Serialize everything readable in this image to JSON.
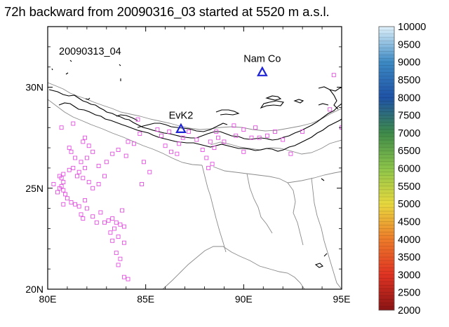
{
  "title": "72h backward from 20090316_03 started at 5520 m a.s.l.",
  "map": {
    "date_label": "20090313_04",
    "lon_range": [
      80,
      95
    ],
    "lat_range": [
      20,
      33
    ],
    "lon_ticks": [
      {
        "value": 80,
        "label": "80E"
      },
      {
        "value": 85,
        "label": "85E"
      },
      {
        "value": 90,
        "label": "90E"
      },
      {
        "value": 95,
        "label": "95E"
      }
    ],
    "lat_ticks": [
      {
        "value": 20,
        "label": "20N"
      },
      {
        "value": 25,
        "label": "25N"
      },
      {
        "value": 30,
        "label": "30N"
      }
    ],
    "sites": [
      {
        "name": "Nam Co",
        "lon": 90.95,
        "lat": 30.77,
        "marker": "triangle",
        "color": "#1f24d6"
      },
      {
        "name": "EvK2",
        "lon": 86.8,
        "lat": 27.96,
        "marker": "triangle",
        "color": "#1f24d6"
      }
    ],
    "particle_color": "#e34fe0",
    "particles": [
      [
        80.7,
        28.0
      ],
      [
        81.1,
        27.0
      ],
      [
        81.2,
        26.8
      ],
      [
        81.4,
        26.5
      ],
      [
        81.3,
        26.0
      ],
      [
        81.1,
        25.9
      ],
      [
        80.8,
        25.7
      ],
      [
        80.6,
        25.6
      ],
      [
        80.7,
        25.5
      ],
      [
        80.8,
        25.3
      ],
      [
        80.7,
        25.1
      ],
      [
        80.6,
        25.0
      ],
      [
        80.8,
        24.9
      ],
      [
        80.9,
        24.7
      ],
      [
        81.0,
        24.5
      ],
      [
        81.2,
        24.3
      ],
      [
        81.4,
        24.2
      ],
      [
        81.6,
        24.1
      ],
      [
        81.9,
        24.4
      ],
      [
        82.0,
        24.0
      ],
      [
        81.7,
        23.7
      ],
      [
        81.8,
        23.5
      ],
      [
        82.3,
        23.6
      ],
      [
        82.5,
        23.3
      ],
      [
        82.9,
        23.3
      ],
      [
        83.1,
        23.4
      ],
      [
        83.3,
        23.5
      ],
      [
        83.5,
        23.3
      ],
      [
        83.7,
        23.2
      ],
      [
        83.8,
        23.9
      ],
      [
        83.9,
        23.1
      ],
      [
        83.4,
        23.0
      ],
      [
        83.2,
        22.8
      ],
      [
        83.6,
        22.6
      ],
      [
        83.3,
        22.4
      ],
      [
        83.9,
        22.3
      ],
      [
        83.5,
        21.8
      ],
      [
        83.7,
        21.5
      ],
      [
        83.6,
        21.2
      ],
      [
        83.9,
        20.6
      ],
      [
        84.1,
        20.5
      ],
      [
        81.9,
        27.5
      ],
      [
        81.8,
        27.3
      ],
      [
        82.1,
        27.1
      ],
      [
        82.3,
        26.8
      ],
      [
        82.0,
        26.5
      ],
      [
        81.7,
        26.3
      ],
      [
        81.9,
        26.0
      ],
      [
        81.6,
        25.8
      ],
      [
        81.5,
        25.6
      ],
      [
        81.8,
        25.5
      ],
      [
        82.1,
        25.3
      ],
      [
        82.3,
        25.0
      ],
      [
        82.6,
        25.2
      ],
      [
        82.9,
        25.6
      ],
      [
        82.6,
        26.1
      ],
      [
        83.0,
        26.3
      ],
      [
        83.3,
        26.7
      ],
      [
        83.6,
        26.9
      ],
      [
        84.1,
        27.3
      ],
      [
        84.0,
        26.6
      ],
      [
        84.4,
        27.2
      ],
      [
        84.6,
        28.4
      ],
      [
        84.7,
        27.7
      ],
      [
        84.9,
        26.3
      ],
      [
        85.2,
        25.8
      ],
      [
        84.8,
        25.2
      ],
      [
        85.6,
        27.9
      ],
      [
        85.8,
        27.6
      ],
      [
        86.2,
        27.8
      ],
      [
        86.0,
        27.1
      ],
      [
        86.3,
        26.8
      ],
      [
        86.6,
        26.7
      ],
      [
        86.7,
        27.2
      ],
      [
        86.9,
        27.5
      ],
      [
        87.2,
        27.8
      ],
      [
        87.6,
        27.4
      ],
      [
        87.9,
        26.9
      ],
      [
        88.1,
        26.5
      ],
      [
        88.4,
        26.2
      ],
      [
        88.2,
        26.0
      ],
      [
        88.5,
        27.0
      ],
      [
        88.7,
        27.5
      ],
      [
        88.6,
        27.8
      ],
      [
        89.0,
        27.3
      ],
      [
        89.6,
        27.6
      ],
      [
        90.0,
        27.9
      ],
      [
        90.0,
        26.8
      ],
      [
        90.4,
        27.5
      ],
      [
        90.8,
        27.5
      ],
      [
        91.2,
        27.6
      ],
      [
        91.6,
        27.8
      ],
      [
        92.0,
        27.4
      ],
      [
        92.4,
        26.7
      ],
      [
        89.5,
        28.1
      ],
      [
        90.6,
        28.0
      ],
      [
        93.0,
        27.8
      ],
      [
        94.4,
        28.9
      ],
      [
        94.6,
        30.6
      ],
      [
        95.0,
        28.0
      ],
      [
        88.3,
        27.3
      ],
      [
        80.3,
        25.2
      ],
      [
        80.5,
        24.8
      ],
      [
        80.8,
        24.2
      ],
      [
        82.7,
        23.8
      ],
      [
        81.3,
        28.2
      ]
    ],
    "colorbar": {
      "min": 2000,
      "max": 10000,
      "labels": [
        "10000",
        "9500",
        "9000",
        "8500",
        "8000",
        "7500",
        "7000",
        "6500",
        "6000",
        "5500",
        "5000",
        "4500",
        "4000",
        "3500",
        "3000",
        "2500",
        "2000"
      ],
      "stops": [
        "#dff1fb",
        "#3d8ac4",
        "#1f52a6",
        "#3e8a4a",
        "#8cc44a",
        "#e8d93e",
        "#ed7b2a",
        "#e03323",
        "#8a1414"
      ]
    }
  }
}
